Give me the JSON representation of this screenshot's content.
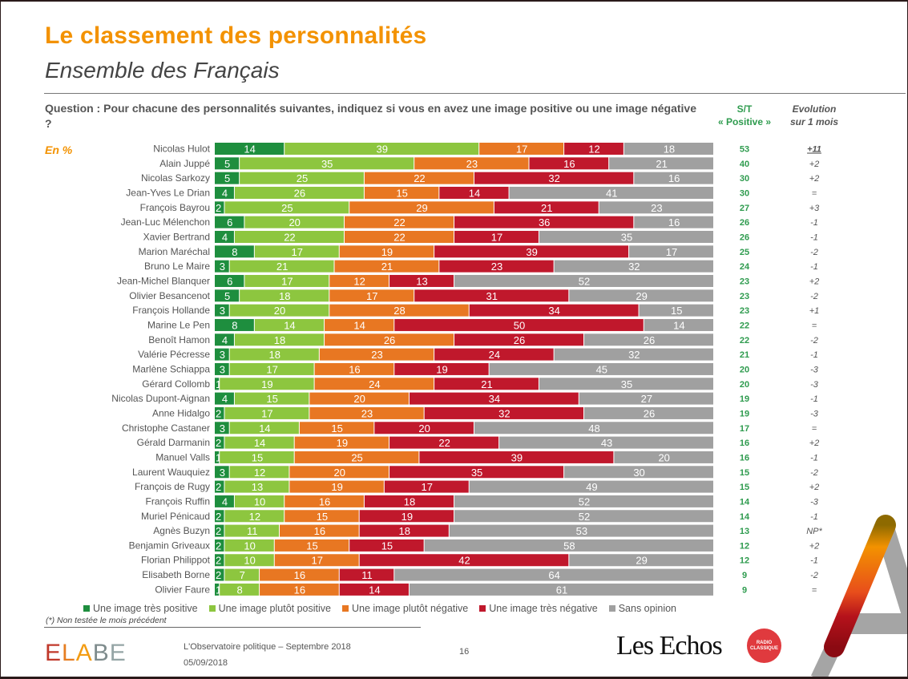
{
  "header": {
    "title": "Le classement des personnalités",
    "subtitle": "Ensemble des Français",
    "question": "Question : Pour chacune des personnalités suivantes, indiquez si vous en avez une image positive ou une image négative ?",
    "unit_label": "En %",
    "col_st_line1": "S/T",
    "col_st_line2": "« Positive »",
    "col_evo_line1": "Evolution",
    "col_evo_line2": "sur 1 mois"
  },
  "colors": {
    "tres_positive": "#1E8E3E",
    "plutot_positive": "#8DC63F",
    "plutot_negative": "#E87722",
    "tres_negative": "#C0182C",
    "sans_opinion": "#A0A0A0",
    "title_orange": "#F39200",
    "st_green": "#2E9B4E",
    "evo_negative_red": "#C0182C"
  },
  "chart_data": {
    "type": "bar",
    "orientation": "horizontal-stacked-100",
    "title": "Le classement des personnalités",
    "subtitle": "Ensemble des Français",
    "xlabel": "",
    "ylabel": "",
    "unit": "%",
    "xlim": [
      0,
      100
    ],
    "legend_position": "bottom",
    "legend": [
      "Une image très positive",
      "Une image plutôt positive",
      "Une image plutôt négative",
      "Une image très négative",
      "Sans opinion"
    ],
    "categories": [
      "Nicolas Hulot",
      "Alain Juppé",
      "Nicolas Sarkozy",
      "Jean-Yves Le Drian",
      "François Bayrou",
      "Jean-Luc Mélenchon",
      "Xavier Bertrand",
      "Marion Maréchal",
      "Bruno Le Maire",
      "Jean-Michel Blanquer",
      "Olivier Besancenot",
      "François Hollande",
      "Marine Le Pen",
      "Benoît Hamon",
      "Valérie Pécresse",
      "Marlène Schiappa",
      "Gérard Collomb",
      "Nicolas Dupont-Aignan",
      "Anne Hidalgo",
      "Christophe Castaner",
      "Gérald Darmanin",
      "Manuel Valls",
      "Laurent Wauquiez",
      "François de Rugy",
      "François Ruffin",
      "Muriel Pénicaud",
      "Agnès Buzyn",
      "Benjamin Griveaux",
      "Florian Philippot",
      "Elisabeth Borne",
      "Olivier Faure"
    ],
    "series": [
      {
        "name": "Une image très positive",
        "values": [
          14,
          5,
          5,
          4,
          2,
          6,
          4,
          8,
          3,
          6,
          5,
          3,
          8,
          4,
          3,
          3,
          1,
          4,
          2,
          3,
          2,
          1,
          3,
          2,
          4,
          2,
          2,
          2,
          2,
          2,
          1
        ]
      },
      {
        "name": "Une image plutôt positive",
        "values": [
          39,
          35,
          25,
          26,
          25,
          20,
          22,
          17,
          21,
          17,
          18,
          20,
          14,
          18,
          18,
          17,
          19,
          15,
          17,
          14,
          14,
          15,
          12,
          13,
          10,
          12,
          11,
          10,
          10,
          7,
          8
        ]
      },
      {
        "name": "Une image plutôt négative",
        "values": [
          17,
          23,
          22,
          15,
          29,
          22,
          22,
          19,
          21,
          12,
          17,
          28,
          14,
          26,
          23,
          16,
          24,
          20,
          23,
          15,
          19,
          25,
          20,
          19,
          16,
          15,
          16,
          15,
          17,
          16,
          16
        ]
      },
      {
        "name": "Une image très négative",
        "values": [
          12,
          16,
          32,
          14,
          21,
          36,
          17,
          39,
          23,
          13,
          31,
          34,
          50,
          26,
          24,
          19,
          21,
          34,
          32,
          20,
          22,
          39,
          35,
          17,
          18,
          19,
          18,
          15,
          42,
          11,
          14
        ]
      },
      {
        "name": "Sans opinion",
        "values": [
          18,
          21,
          16,
          41,
          23,
          16,
          35,
          17,
          32,
          52,
          29,
          15,
          14,
          26,
          32,
          45,
          35,
          27,
          26,
          48,
          43,
          20,
          30,
          49,
          52,
          52,
          53,
          58,
          29,
          64,
          61
        ]
      }
    ],
    "st_positive": [
      53,
      40,
      30,
      30,
      27,
      26,
      26,
      25,
      24,
      23,
      23,
      23,
      22,
      22,
      21,
      20,
      20,
      19,
      19,
      17,
      16,
      16,
      15,
      15,
      14,
      14,
      13,
      12,
      12,
      9,
      9
    ],
    "evolution_1_mois": [
      "+11",
      "+2",
      "+2",
      "=",
      "+3",
      "-1",
      "-1",
      "-2",
      "-1",
      "+2",
      "-2",
      "+1",
      "=",
      "-2",
      "-1",
      "-3",
      "-3",
      "-1",
      "-3",
      "=",
      "+2",
      "-1",
      "-2",
      "+2",
      "-3",
      "-1",
      "NP*",
      "+2",
      "-1",
      "-2",
      "="
    ]
  },
  "legend": {
    "items": [
      "Une image très positive",
      "Une image plutôt positive",
      "Une image plutôt négative",
      "Une image très négative",
      "Sans opinion"
    ]
  },
  "footer": {
    "footnote": "(*) Non testée le mois précédent",
    "logo_elabe": "ELABE",
    "report_title": "L'Observatoire politique – Septembre 2018",
    "date": "05/09/2018",
    "page_number": "16",
    "logo_lesechos": "Les Echos",
    "logo_radio_line1": "RADIO",
    "logo_radio_line2": "CLASSIQUE"
  }
}
